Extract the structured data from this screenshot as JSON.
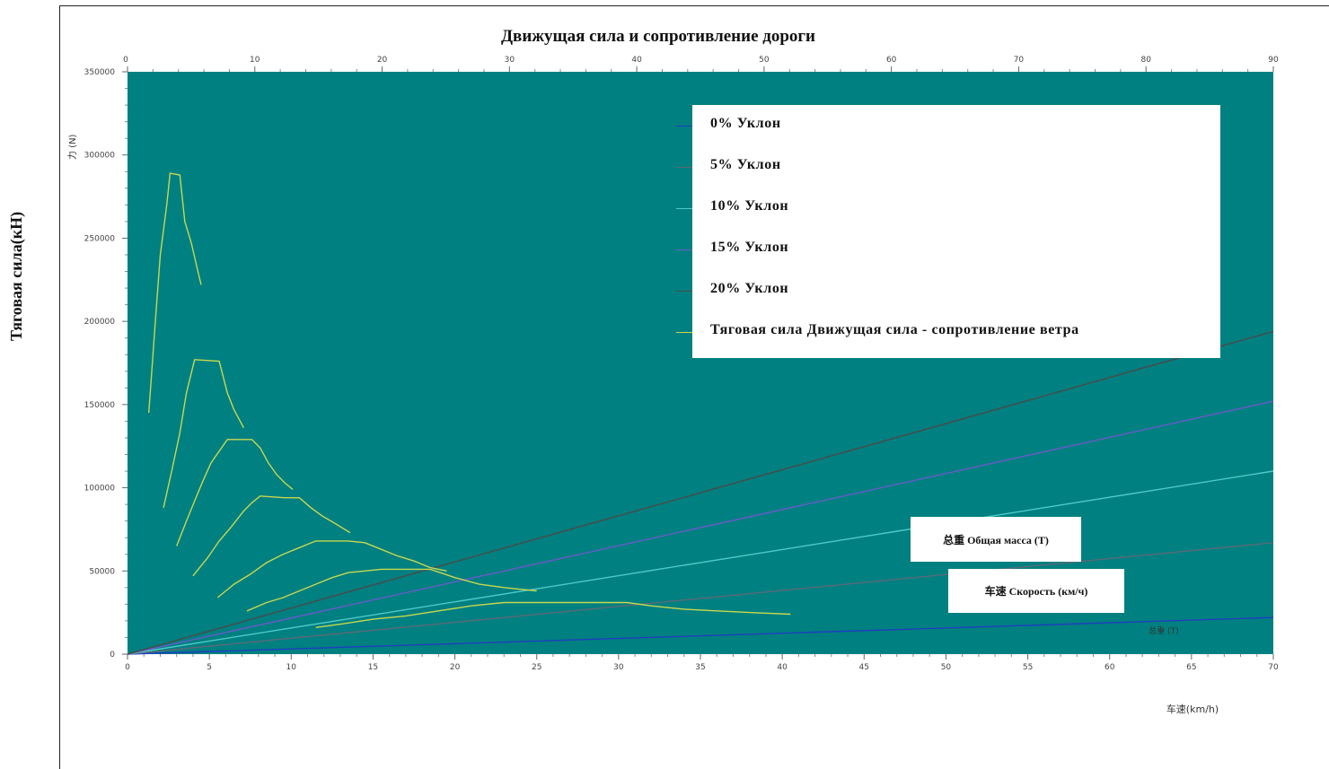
{
  "y_outer_label": "Тяговая сила(кН)",
  "boxes": {
    "mass": "总重 Общая масса (T)",
    "speed": "车速 Скорость (км/ч)"
  },
  "chart_data": {
    "type": "line",
    "title": "Движущая сила и сопротивление дороги",
    "xlabel": "车速(km/h)",
    "ylabel": "力 (N)",
    "secondary_x_label_inside": "总重 (T)",
    "xlim": [
      0,
      70
    ],
    "ylim": [
      0,
      350000
    ],
    "x_ticks": [
      0,
      5,
      10,
      15,
      20,
      25,
      30,
      35,
      40,
      45,
      50,
      55,
      60,
      65,
      70
    ],
    "x2lim": [
      0,
      90
    ],
    "x2_ticks": [
      0,
      10,
      20,
      30,
      40,
      50,
      60,
      70,
      80,
      90
    ],
    "y_ticks": [
      0,
      50000,
      100000,
      150000,
      200000,
      250000,
      300000,
      350000
    ],
    "background": "#008080",
    "legend_position": "top-right",
    "series": [
      {
        "name": "0% Уклон",
        "color": "#1f3fbf",
        "x": [
          0,
          70
        ],
        "y": [
          0,
          22000
        ]
      },
      {
        "name": "5% Уклон",
        "color": "#5a6a78",
        "x": [
          0,
          70
        ],
        "y": [
          0,
          67000
        ]
      },
      {
        "name": "10% Уклон",
        "color": "#4fc8c8",
        "x": [
          0,
          70
        ],
        "y": [
          0,
          110000
        ]
      },
      {
        "name": "15% Уклон",
        "color": "#6a5ac8",
        "x": [
          0,
          70
        ],
        "y": [
          0,
          152000
        ]
      },
      {
        "name": "20% Уклон",
        "color": "#4a4a4a",
        "x": [
          0,
          70
        ],
        "y": [
          0,
          194000
        ]
      },
      {
        "name": "Тяговая сила Движущая сила - сопротивление ветра",
        "color": "#c8d850",
        "curves": [
          {
            "x": [
              1.3,
              1.7,
              2.0,
              2.4,
              2.6,
              3.2,
              3.5,
              3.9,
              4.3,
              4.5
            ],
            "y": [
              145000,
              200000,
              240000,
              270000,
              289000,
              288000,
              260000,
              247000,
              230000,
              222000
            ]
          },
          {
            "x": [
              2.2,
              2.7,
              3.2,
              3.6,
              4.1,
              5.6,
              6.1,
              6.5,
              7.1
            ],
            "y": [
              88000,
              110000,
              133000,
              157000,
              177000,
              176000,
              157000,
              147000,
              136000
            ]
          },
          {
            "x": [
              3.0,
              3.6,
              4.1,
              4.6,
              5.1,
              5.6,
              6.1,
              6.6,
              7.1,
              7.6,
              8.1,
              8.6,
              9.1,
              9.6,
              10.1
            ],
            "y": [
              65000,
              80000,
              92000,
              104000,
              115000,
              122000,
              129000,
              129000,
              129000,
              129000,
              124000,
              115000,
              108000,
              103000,
              99000
            ]
          },
          {
            "x": [
              4.0,
              4.9,
              5.6,
              6.3,
              7.1,
              7.6,
              8.1,
              9.6,
              10.5,
              11.2,
              11.9,
              12.6,
              13.6
            ],
            "y": [
              47000,
              58000,
              68000,
              76000,
              86000,
              91000,
              95000,
              94000,
              94000,
              88000,
              83000,
              79000,
              73000
            ]
          },
          {
            "x": [
              5.5,
              6.5,
              7.5,
              8.5,
              9.5,
              10.5,
              11.5,
              12.5,
              13.5,
              14.5,
              15.5,
              16.5,
              17.5,
              18.5,
              19.5
            ],
            "y": [
              34000,
              42000,
              48000,
              55000,
              60000,
              64000,
              68000,
              68000,
              68000,
              67000,
              63000,
              59000,
              56000,
              52000,
              50000
            ]
          },
          {
            "x": [
              7.3,
              8.5,
              9.5,
              10.5,
              11.5,
              12.5,
              13.5,
              14.5,
              15.5,
              17.0,
              18.5,
              20.0,
              21.5,
              23.0,
              24.0,
              25.0
            ],
            "y": [
              26000,
              31000,
              34000,
              38000,
              42000,
              46000,
              49000,
              50000,
              51000,
              51000,
              51000,
              46000,
              42000,
              40000,
              39000,
              38000
            ]
          },
          {
            "x": [
              11.5,
              13.0,
              15.0,
              17.0,
              19.0,
              21.0,
              23.0,
              25.0,
              27.0,
              30.5,
              32.0,
              34.0,
              36.0,
              38.0,
              40.5
            ],
            "y": [
              16000,
              18000,
              21000,
              23000,
              26000,
              29000,
              31000,
              31000,
              31000,
              31000,
              29000,
              27000,
              26000,
              25000,
              24000
            ]
          }
        ]
      }
    ]
  }
}
